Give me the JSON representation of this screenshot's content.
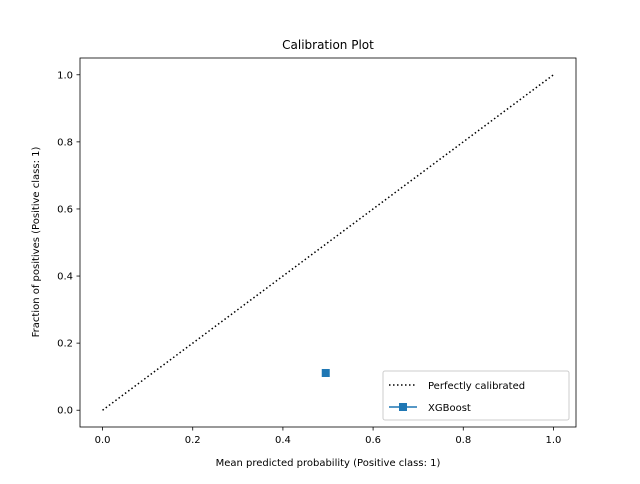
{
  "chart_data": {
    "type": "scatter",
    "title": "Calibration Plot",
    "xlabel": "Mean predicted probability (Positive class: 1)",
    "ylabel": "Fraction of positives (Positive class: 1)",
    "xlim": [
      -0.05,
      1.05
    ],
    "ylim": [
      -0.05,
      1.05
    ],
    "x_ticks": [
      "0.0",
      "0.2",
      "0.4",
      "0.6",
      "0.8",
      "1.0"
    ],
    "y_ticks": [
      "0.0",
      "0.2",
      "0.4",
      "0.6",
      "0.8",
      "1.0"
    ],
    "grid": false,
    "legend_position": "bottom-right",
    "series": [
      {
        "name": "Perfectly calibrated",
        "style": "dotted-line",
        "color": "#000000",
        "x": [
          0.0,
          1.0
        ],
        "y": [
          0.0,
          1.0
        ]
      },
      {
        "name": "XGBoost",
        "style": "line-square-marker",
        "color": "#1f77b4",
        "x": [
          0.495
        ],
        "y": [
          0.111
        ]
      }
    ]
  }
}
